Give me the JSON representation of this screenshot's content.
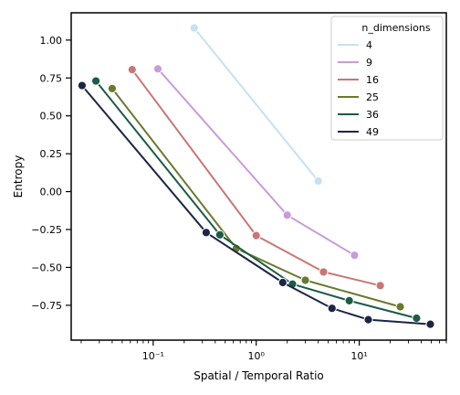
{
  "chart_data": {
    "type": "line",
    "xlabel": "Spatial / Temporal Ratio",
    "ylabel": "Entropy",
    "xscale": "log",
    "xlim": [
      0.016,
      70
    ],
    "ylim": [
      -0.98,
      1.18
    ],
    "x_ticks": [
      0.1,
      1,
      10
    ],
    "x_tick_labels": [
      "10⁻¹",
      "10⁰",
      "10¹"
    ],
    "y_ticks": [
      1.0,
      0.75,
      0.5,
      0.25,
      0.0,
      -0.25,
      -0.5,
      -0.75
    ],
    "y_tick_labels": [
      "1.00",
      "0.75",
      "0.50",
      "0.25",
      "0.00",
      "−0.25",
      "−0.50",
      "−0.75"
    ],
    "grid": false,
    "legend": {
      "title": "n_dimensions",
      "placement": "top-right"
    },
    "series": [
      {
        "name": "4",
        "color": "#c6e1f1",
        "x": [
          0.25,
          4.0
        ],
        "y": [
          1.08,
          0.07
        ]
      },
      {
        "name": "9",
        "color": "#c99bd9",
        "x": [
          0.111,
          2.0,
          9.0
        ],
        "y": [
          0.81,
          -0.155,
          -0.42
        ]
      },
      {
        "name": "16",
        "color": "#c97675",
        "x": [
          0.0625,
          1.0,
          4.5,
          16.0
        ],
        "y": [
          0.805,
          -0.29,
          -0.53,
          -0.62
        ]
      },
      {
        "name": "25",
        "color": "#697a2e",
        "x": [
          0.04,
          0.64,
          3.0,
          25.0
        ],
        "y": [
          0.68,
          -0.375,
          -0.585,
          -0.76
        ]
      },
      {
        "name": "36",
        "color": "#1c5b45",
        "x": [
          0.0278,
          0.444,
          2.25,
          8.0,
          36.0
        ],
        "y": [
          0.73,
          -0.285,
          -0.61,
          -0.72,
          -0.835
        ]
      },
      {
        "name": "49",
        "color": "#1c2544",
        "x": [
          0.0204,
          0.327,
          1.81,
          5.44,
          12.25,
          49.0
        ],
        "y": [
          0.7,
          -0.27,
          -0.6,
          -0.77,
          -0.845,
          -0.875
        ]
      }
    ]
  }
}
